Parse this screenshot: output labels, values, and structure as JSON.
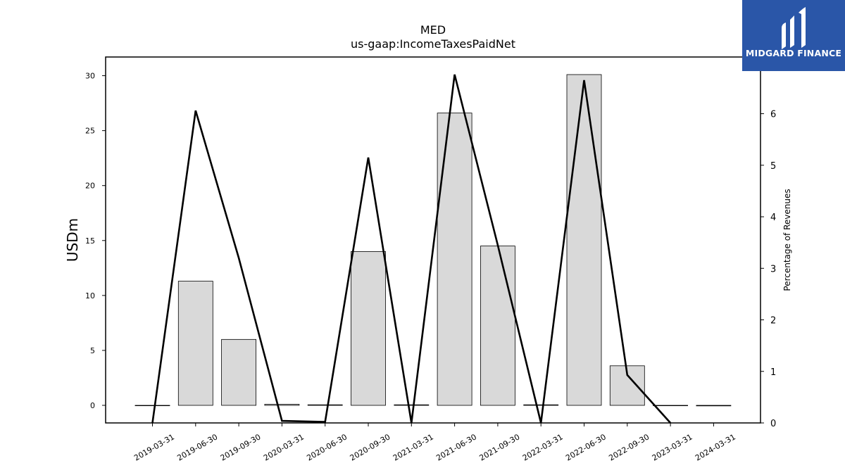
{
  "chart_data": {
    "type": "bar",
    "title": "MED",
    "subtitle": "us-gaap:IncomeTaxesPaidNet",
    "ylabel": "USDm",
    "y2label": "Percentage of Revenues",
    "categories": [
      "2019-03-31",
      "2019-06-30",
      "2019-09-30",
      "2020-03-31",
      "2020-06-30",
      "2020-09-30",
      "2021-03-31",
      "2021-06-30",
      "2021-09-30",
      "2022-03-31",
      "2022-06-30",
      "2022-09-30",
      "2023-03-31",
      "2024-03-31"
    ],
    "series": [
      {
        "axis": "left",
        "type": "bar",
        "values": [
          0.0,
          11.3,
          6.0,
          0.1,
          0.05,
          14.0,
          0.05,
          26.6,
          14.5,
          0.05,
          30.1,
          3.6,
          0.0,
          -0.05
        ]
      },
      {
        "axis": "right",
        "type": "line",
        "values": [
          0.0,
          6.06,
          3.2,
          0.04,
          0.02,
          5.15,
          0.0,
          6.76,
          3.45,
          0.0,
          6.65,
          0.93,
          0.0,
          null
        ]
      }
    ],
    "ylim": [
      -1.6,
      31.7
    ],
    "y2lim": [
      0,
      7.1
    ],
    "yticks": [
      "0",
      "5",
      "10",
      "15",
      "20",
      "25",
      "30"
    ],
    "y2ticks": [
      "0",
      "1",
      "2",
      "3",
      "4",
      "5",
      "6"
    ],
    "grid": false,
    "colors": {
      "bar_fill": "#d9d9d9",
      "bar_edge": "#000000",
      "line": "#000000"
    }
  },
  "logo": {
    "text": "MIDGARD FINANCE",
    "bg": "#2a56a8"
  }
}
